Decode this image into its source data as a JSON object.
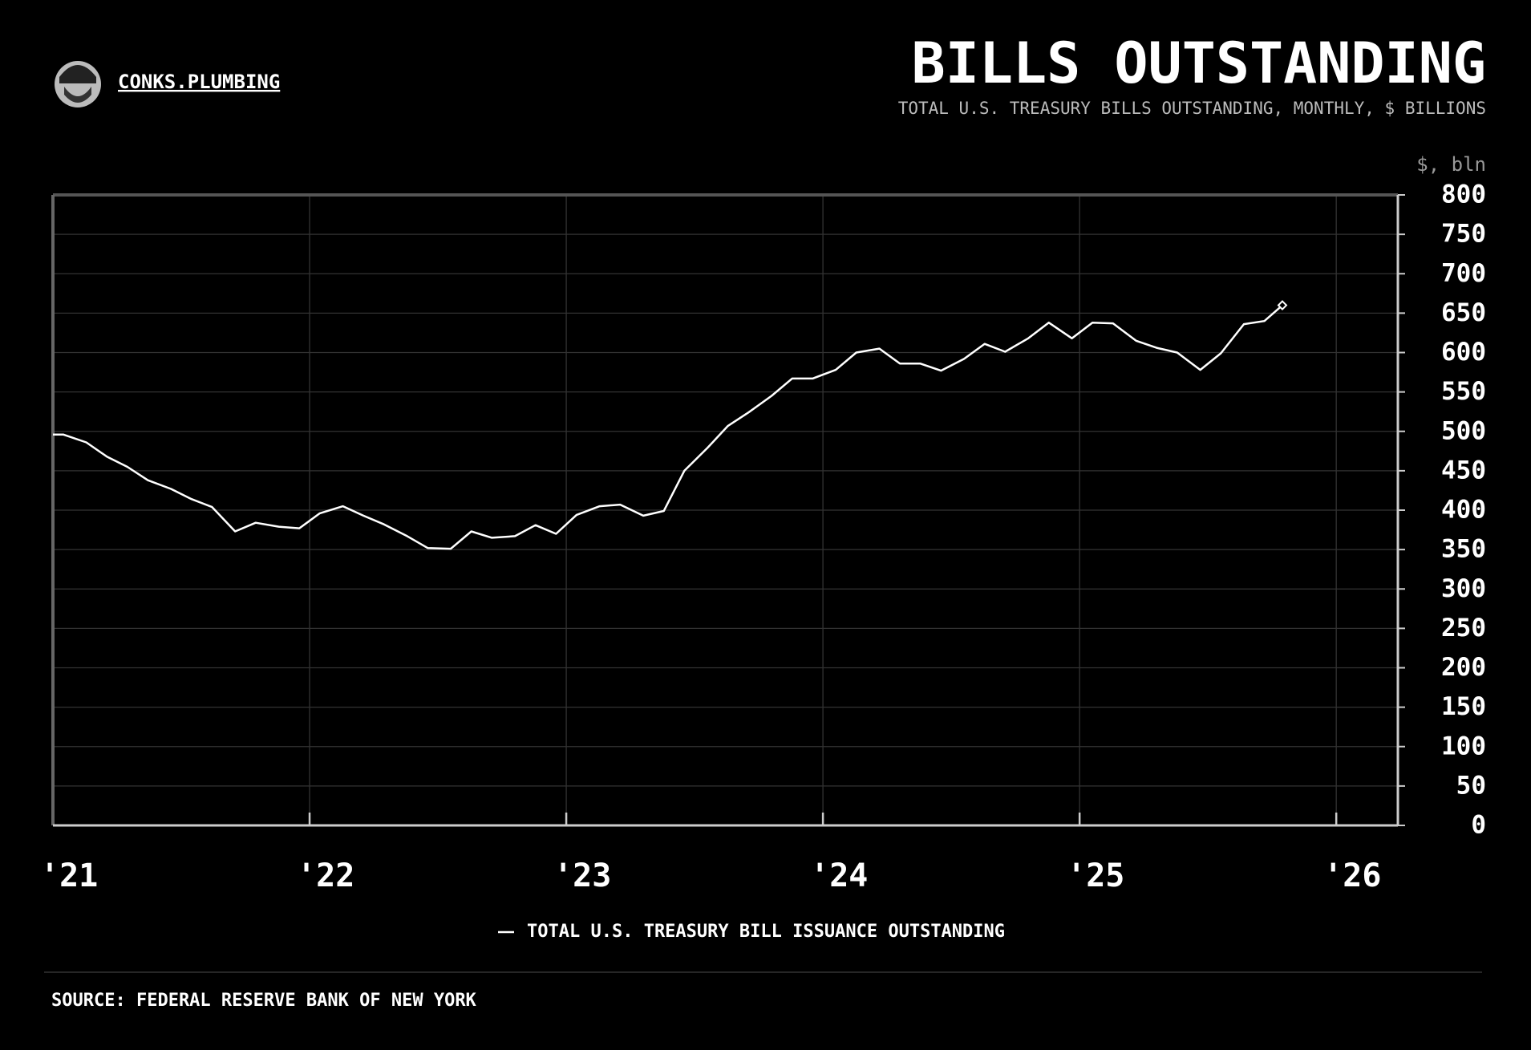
{
  "brand": "CONKS.PLUMBING",
  "source": "SOURCE: FEDERAL RESERVE BANK OF NEW YORK",
  "chart_data": {
    "type": "line",
    "title": "BILLS OUTSTANDING",
    "subtitle": "TOTAL U.S. TREASURY BILLS OUTSTANDING, MONTHLY, $ BILLIONS",
    "y_label": "$, bln",
    "x": [
      2021.0,
      2021.04,
      2021.13,
      2021.21,
      2021.29,
      2021.37,
      2021.46,
      2021.54,
      2021.62,
      2021.71,
      2021.79,
      2021.88,
      2021.96,
      2022.04,
      2022.13,
      2022.21,
      2022.29,
      2022.38,
      2022.46,
      2022.55,
      2022.63,
      2022.71,
      2022.8,
      2022.88,
      2022.96,
      2023.04,
      2023.13,
      2023.21,
      2023.3,
      2023.38,
      2023.46,
      2023.55,
      2023.63,
      2023.71,
      2023.8,
      2023.88,
      2023.96,
      2024.05,
      2024.13,
      2024.22,
      2024.3,
      2024.38,
      2024.46,
      2024.55,
      2024.63,
      2024.71,
      2024.8,
      2024.88,
      2024.97,
      2025.05,
      2025.13,
      2025.22,
      2025.3,
      2025.38,
      2025.47,
      2025.55,
      2025.64,
      2025.72,
      2025.79
    ],
    "series": [
      {
        "name": "TOTAL U.S. TREASURY BILL ISSUANCE OUTSTANDING",
        "color": "#ffffff",
        "values": [
          496,
          496,
          486,
          468,
          455,
          438,
          427,
          414,
          404,
          373,
          384,
          379,
          377,
          396,
          405,
          393,
          382,
          367,
          352,
          351,
          373,
          365,
          367,
          381,
          370,
          394,
          405,
          407,
          393,
          399,
          450,
          479,
          507,
          524,
          545,
          567,
          567,
          578,
          600,
          605,
          586,
          586,
          577,
          592,
          611,
          601,
          618,
          638,
          618,
          638,
          637,
          615,
          606,
          600,
          578,
          599,
          636,
          640,
          660
        ]
      }
    ],
    "xlim": [
      2021,
      2026.24
    ],
    "xticks": [
      {
        "value": 2021,
        "label": "'21"
      },
      {
        "value": 2022,
        "label": "'22"
      },
      {
        "value": 2023,
        "label": "'23"
      },
      {
        "value": 2024,
        "label": "'24"
      },
      {
        "value": 2025,
        "label": "'25"
      },
      {
        "value": 2026,
        "label": "'26"
      }
    ],
    "ylim": [
      0,
      800
    ],
    "yticks": [
      0,
      50,
      100,
      150,
      200,
      250,
      300,
      350,
      400,
      450,
      500,
      550,
      600,
      650,
      700,
      750,
      800
    ],
    "grid": true,
    "legend": "bottom"
  }
}
